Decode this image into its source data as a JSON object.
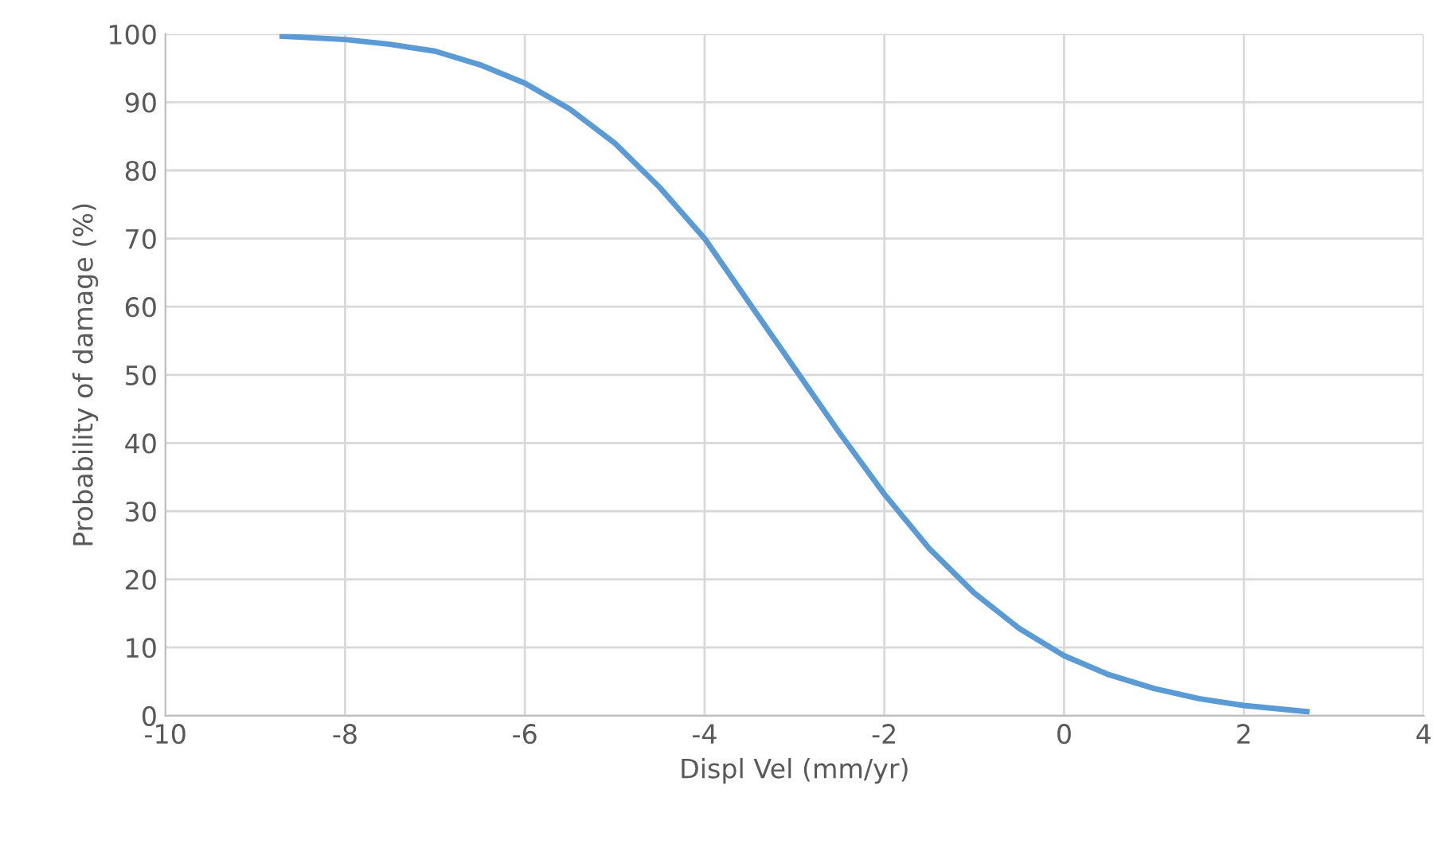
{
  "chart_data": {
    "type": "line",
    "xlabel": "Displ Vel (mm/yr)",
    "ylabel": "Probability of damage (%)",
    "x": [
      -8.7,
      -8,
      -7.5,
      -7,
      -6.5,
      -6,
      -5.5,
      -5,
      -4.5,
      -4,
      -3.5,
      -3,
      -2.5,
      -2,
      -1.5,
      -1,
      -0.5,
      0,
      0.5,
      1,
      1.5,
      2,
      2.7
    ],
    "series": [
      {
        "color": "#5b9bd5",
        "values": [
          99.7,
          99.2,
          98.5,
          97.5,
          95.5,
          92.8,
          89,
          84,
          77.5,
          70,
          60.5,
          51,
          41.5,
          32.5,
          24.5,
          18,
          12.8,
          8.8,
          6,
          4,
          2.5,
          1.5,
          0.6
        ]
      }
    ],
    "xlim": [
      -10,
      4
    ],
    "xticks": [
      -10,
      -8,
      -6,
      -4,
      -2,
      0,
      2,
      4
    ],
    "ylim": [
      0,
      100
    ],
    "yticks": [
      0,
      10,
      20,
      30,
      40,
      50,
      60,
      70,
      80,
      90,
      100
    ],
    "grid": true,
    "marker": "none",
    "line_style": "solid"
  }
}
